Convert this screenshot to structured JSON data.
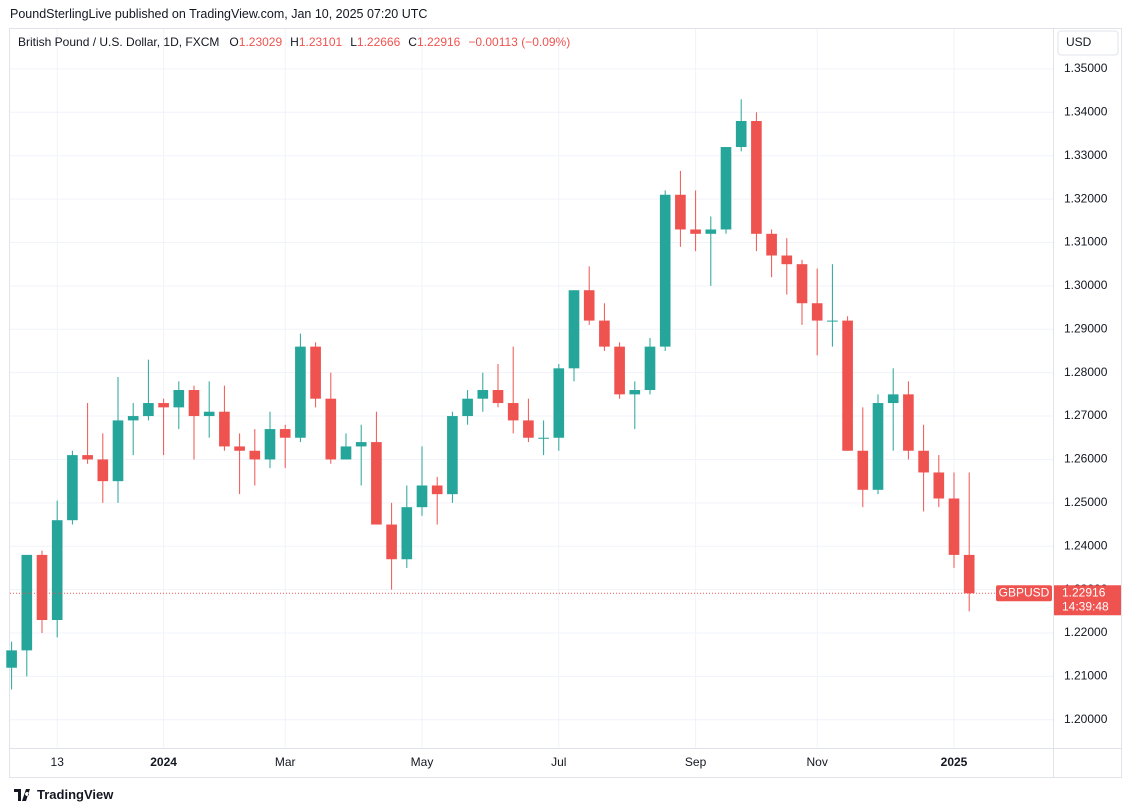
{
  "publisher": "PoundSterlingLive published on TradingView.com, Jan 10, 2025 07:20 UTC",
  "footer": "TradingView",
  "currency": "USD",
  "header": {
    "instrument": "British Pound / U.S. Dollar, 1D, FXCM",
    "fields": [
      {
        "label": "O",
        "value": "1.23029"
      },
      {
        "label": "H",
        "value": "1.23101"
      },
      {
        "label": "L",
        "value": "1.22666"
      },
      {
        "label": "C",
        "value": "1.22916"
      }
    ],
    "change": "−0.00113 (−0.09%)"
  },
  "chart_data": {
    "type": "candlestick",
    "up_color": "#26a69a",
    "down_color": "#ef5350",
    "grid": true,
    "categories": [
      null,
      null,
      null,
      "13",
      null,
      null,
      null,
      null,
      null,
      null,
      "2024",
      null,
      null,
      null,
      null,
      null,
      null,
      null,
      "Mar",
      null,
      null,
      null,
      null,
      null,
      null,
      null,
      null,
      "May",
      null,
      null,
      null,
      null,
      null,
      null,
      null,
      null,
      "Jul",
      null,
      null,
      null,
      null,
      null,
      null,
      null,
      null,
      "Sep",
      null,
      null,
      null,
      null,
      null,
      null,
      null,
      "Nov",
      null,
      null,
      null,
      null,
      null,
      null,
      null,
      null,
      "2025",
      null
    ],
    "open": [
      1.212,
      1.216,
      1.238,
      1.223,
      1.246,
      1.261,
      1.26,
      1.255,
      1.269,
      1.27,
      1.273,
      1.272,
      1.276,
      1.27,
      1.271,
      1.263,
      1.262,
      1.26,
      1.267,
      1.265,
      1.286,
      1.274,
      1.26,
      1.263,
      1.264,
      1.245,
      1.237,
      1.249,
      1.254,
      1.252,
      1.27,
      1.274,
      1.276,
      1.273,
      1.269,
      1.265,
      1.265,
      1.281,
      1.299,
      1.292,
      1.286,
      1.275,
      1.276,
      1.286,
      1.321,
      1.313,
      1.312,
      1.313,
      1.332,
      1.338,
      1.312,
      1.307,
      1.305,
      1.296,
      1.292,
      1.292,
      1.262,
      1.253,
      1.273,
      1.275,
      1.262,
      1.257,
      1.251,
      1.238
    ],
    "high": [
      1.218,
      1.238,
      1.239,
      1.2505,
      1.262,
      1.273,
      1.266,
      1.279,
      1.273,
      1.283,
      1.274,
      1.278,
      1.277,
      1.278,
      1.277,
      1.266,
      1.267,
      1.271,
      1.268,
      1.289,
      1.287,
      1.28,
      1.266,
      1.268,
      1.271,
      1.25,
      1.254,
      1.263,
      1.256,
      1.271,
      1.276,
      1.28,
      1.282,
      1.286,
      1.274,
      1.269,
      1.282,
      1.299,
      1.3045,
      1.296,
      1.287,
      1.278,
      1.288,
      1.322,
      1.3265,
      1.322,
      1.316,
      1.332,
      1.343,
      1.34,
      1.313,
      1.311,
      1.306,
      1.304,
      1.305,
      1.293,
      1.272,
      1.275,
      1.281,
      1.278,
      1.268,
      1.261,
      1.257,
      1.257
    ],
    "low": [
      1.207,
      1.21,
      1.22,
      1.219,
      1.245,
      1.259,
      1.25,
      1.25,
      1.261,
      1.269,
      1.261,
      1.267,
      1.26,
      1.265,
      1.262,
      1.252,
      1.254,
      1.258,
      1.258,
      1.264,
      1.272,
      1.259,
      1.26,
      1.254,
      1.245,
      1.23,
      1.235,
      1.247,
      1.245,
      1.25,
      1.268,
      1.271,
      1.272,
      1.266,
      1.264,
      1.261,
      1.262,
      1.278,
      1.291,
      1.285,
      1.274,
      1.267,
      1.275,
      1.285,
      1.309,
      1.308,
      1.3,
      1.312,
      1.331,
      1.308,
      1.302,
      1.298,
      1.291,
      1.284,
      1.286,
      1.262,
      1.249,
      1.252,
      1.262,
      1.26,
      1.248,
      1.249,
      1.235,
      1.225
    ],
    "close": [
      1.216,
      1.238,
      1.223,
      1.246,
      1.261,
      1.26,
      1.255,
      1.269,
      1.27,
      1.273,
      1.272,
      1.276,
      1.27,
      1.271,
      1.263,
      1.262,
      1.26,
      1.267,
      1.265,
      1.286,
      1.274,
      1.26,
      1.263,
      1.264,
      1.245,
      1.237,
      1.249,
      1.254,
      1.252,
      1.27,
      1.274,
      1.276,
      1.273,
      1.269,
      1.265,
      1.265,
      1.281,
      1.299,
      1.292,
      1.286,
      1.275,
      1.276,
      1.286,
      1.321,
      1.313,
      1.312,
      1.313,
      1.332,
      1.338,
      1.312,
      1.307,
      1.305,
      1.296,
      1.292,
      1.292,
      1.262,
      1.253,
      1.273,
      1.275,
      1.262,
      1.257,
      1.251,
      1.238,
      1.22916
    ],
    "ylim": [
      1.1935,
      1.3592
    ],
    "yticks": [
      {
        "value": 1.2,
        "label": "1.20000"
      },
      {
        "value": 1.21,
        "label": "1.21000"
      },
      {
        "value": 1.22,
        "label": "1.22000"
      },
      {
        "value": 1.23,
        "label": "1.23000"
      },
      {
        "value": 1.24,
        "label": "1.24000"
      },
      {
        "value": 1.25,
        "label": "1.25000"
      },
      {
        "value": 1.26,
        "label": "1.26000"
      },
      {
        "value": 1.27,
        "label": "1.27000"
      },
      {
        "value": 1.28,
        "label": "1.28000"
      },
      {
        "value": 1.29,
        "label": "1.29000"
      },
      {
        "value": 1.3,
        "label": "1.30000"
      },
      {
        "value": 1.31,
        "label": "1.31000"
      },
      {
        "value": 1.32,
        "label": "1.32000"
      },
      {
        "value": 1.33,
        "label": "1.33000"
      },
      {
        "value": 1.34,
        "label": "1.34000"
      },
      {
        "value": 1.35,
        "label": "1.35000"
      }
    ],
    "price_line": {
      "symbol": "GBPUSD",
      "value": 1.22916,
      "countdown": "14:39:48"
    }
  }
}
